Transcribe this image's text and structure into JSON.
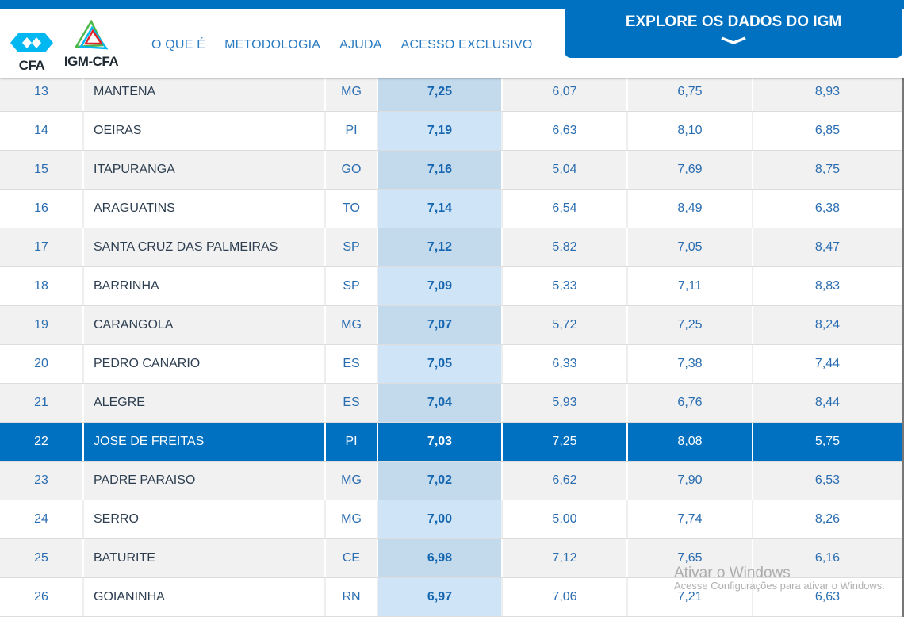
{
  "header": {
    "logo_cfa": "CFA",
    "logo_igm": "IGM-CFA",
    "nav": [
      "O QUE É",
      "METODOLOGIA",
      "AJUDA",
      "ACESSO EXCLUSIVO"
    ],
    "explore_label": "EXPLORE OS DADOS DO IGM"
  },
  "rows": [
    [
      "13",
      "MANTENA",
      "MG",
      "7,25",
      "6,07",
      "6,75",
      "8,93"
    ],
    [
      "14",
      "OEIRAS",
      "PI",
      "7,19",
      "6,63",
      "8,10",
      "6,85"
    ],
    [
      "15",
      "ITAPURANGA",
      "GO",
      "7,16",
      "5,04",
      "7,69",
      "8,75"
    ],
    [
      "16",
      "ARAGUATINS",
      "TO",
      "7,14",
      "6,54",
      "8,49",
      "6,38"
    ],
    [
      "17",
      "SANTA CRUZ DAS PALMEIRAS",
      "SP",
      "7,12",
      "5,82",
      "7,05",
      "8,47"
    ],
    [
      "18",
      "BARRINHA",
      "SP",
      "7,09",
      "5,33",
      "7,11",
      "8,83"
    ],
    [
      "19",
      "CARANGOLA",
      "MG",
      "7,07",
      "5,72",
      "7,25",
      "8,24"
    ],
    [
      "20",
      "PEDRO CANARIO",
      "ES",
      "7,05",
      "6,33",
      "7,38",
      "7,44"
    ],
    [
      "21",
      "ALEGRE",
      "ES",
      "7,04",
      "5,93",
      "6,76",
      "8,44"
    ],
    [
      "22",
      "JOSE DE FREITAS",
      "PI",
      "7,03",
      "7,25",
      "8,08",
      "5,75"
    ],
    [
      "23",
      "PADRE PARAISO",
      "MG",
      "7,02",
      "6,62",
      "7,90",
      "6,53"
    ],
    [
      "24",
      "SERRO",
      "MG",
      "7,00",
      "5,00",
      "7,74",
      "8,26"
    ],
    [
      "25",
      "BATURITE",
      "CE",
      "6,98",
      "7,12",
      "7,65",
      "6,16"
    ],
    [
      "26",
      "GOIANINHA",
      "RN",
      "6,97",
      "7,06",
      "7,21",
      "6,63"
    ]
  ],
  "highlight_rank": "22",
  "watermark": {
    "title": "Ativar o Windows",
    "subtitle": "Acesse Configurações para ativar o Windows."
  }
}
